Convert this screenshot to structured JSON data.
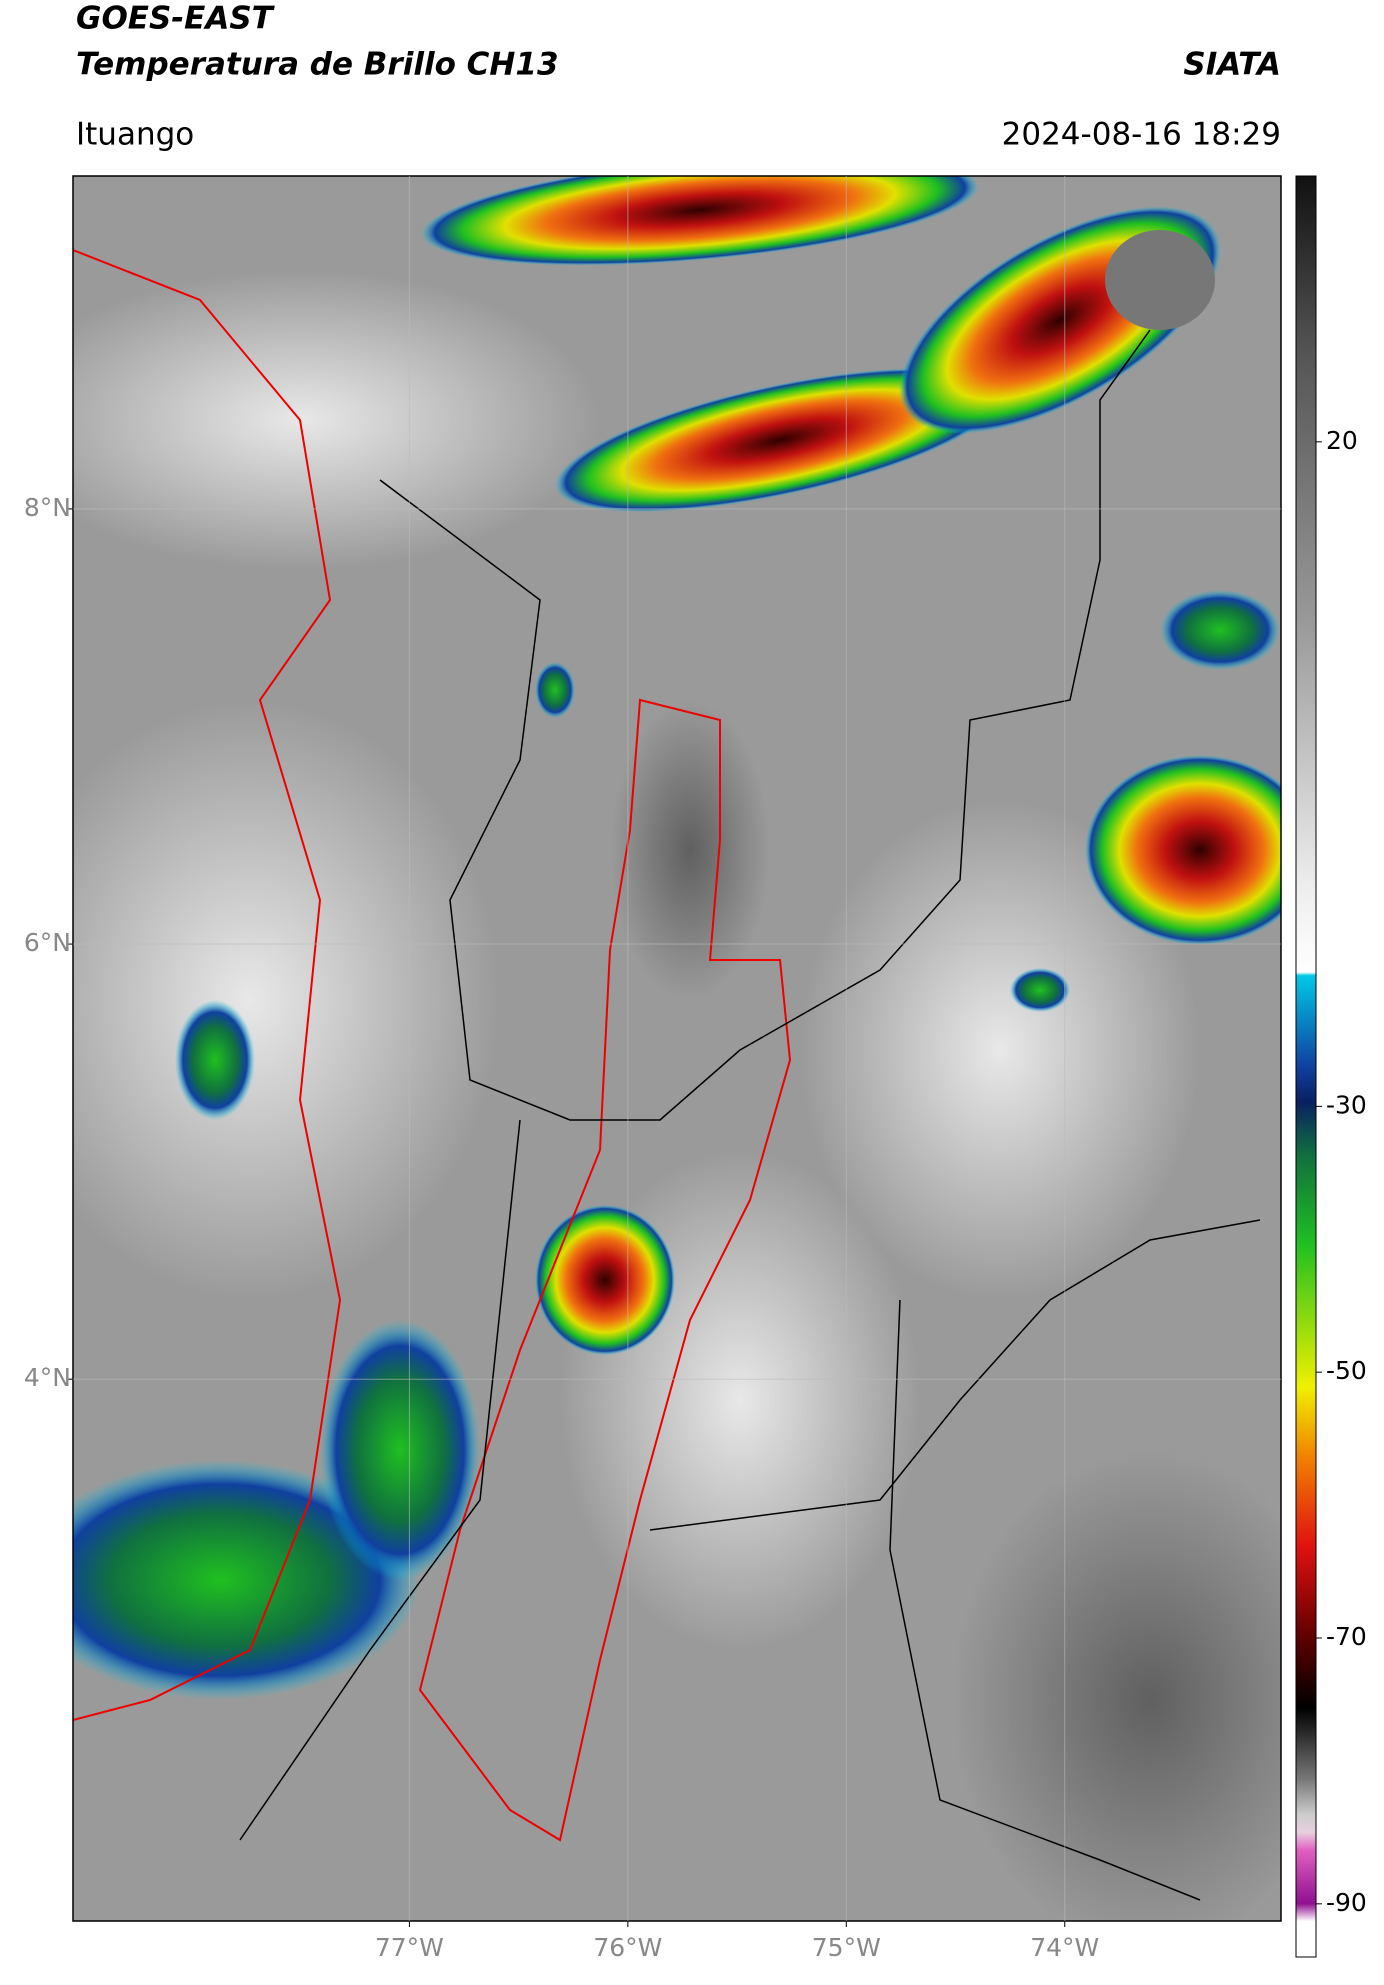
{
  "header": {
    "satellite": "GOES-EAST",
    "product": "Temperatura de Brillo CH13",
    "source": "SIATA",
    "location": "Ituango",
    "datetime": "2024-08-16 18:29"
  },
  "map": {
    "xlim": [
      -78.54,
      -73.01
    ],
    "ylim": [
      1.51,
      9.53
    ],
    "xticks": [
      {
        "value": -77,
        "label": "77°W"
      },
      {
        "value": -76,
        "label": "76°W"
      },
      {
        "value": -75,
        "label": "75°W"
      },
      {
        "value": -74,
        "label": "74°W"
      }
    ],
    "yticks": [
      {
        "value": 8,
        "label": "8°N"
      },
      {
        "value": 6,
        "label": "6°N"
      },
      {
        "value": 4,
        "label": "4°N"
      }
    ],
    "grid": true
  },
  "colorbar": {
    "lim": [
      -94,
      40
    ],
    "ticks": [
      20,
      -30,
      -50,
      -70,
      -90
    ]
  }
}
